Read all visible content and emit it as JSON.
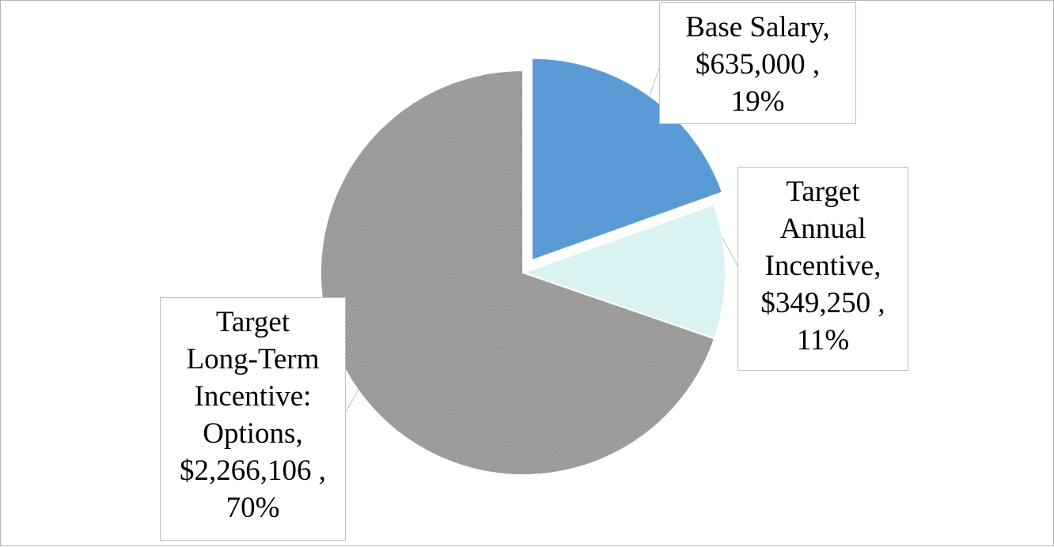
{
  "chart_data": {
    "type": "pie",
    "title": "",
    "slices": [
      {
        "category_lines": [
          "Base Salary,"
        ],
        "category": "Base Salary",
        "value": 635000,
        "value_label": "$635,000 ,",
        "percent": 19,
        "percent_label": "19%",
        "color": "#5b9bd5",
        "exploded": true
      },
      {
        "category_lines": [
          "Target",
          "Annual",
          "Incentive,"
        ],
        "category": "Target Annual Incentive",
        "value": 349250,
        "value_label": "$349,250 ,",
        "percent": 11,
        "percent_label": "11%",
        "color": "#daf2f2",
        "exploded": false
      },
      {
        "category_lines": [
          "Target",
          "Long-Term",
          "Incentive:",
          "Options,"
        ],
        "category": "Target Long-Term Incentive: Options",
        "value": 2266106,
        "value_label": "$2,266,106 ,",
        "percent": 70,
        "percent_label": "70%",
        "color": "#a6a6a6",
        "exploded": false
      }
    ],
    "legend": "none"
  }
}
